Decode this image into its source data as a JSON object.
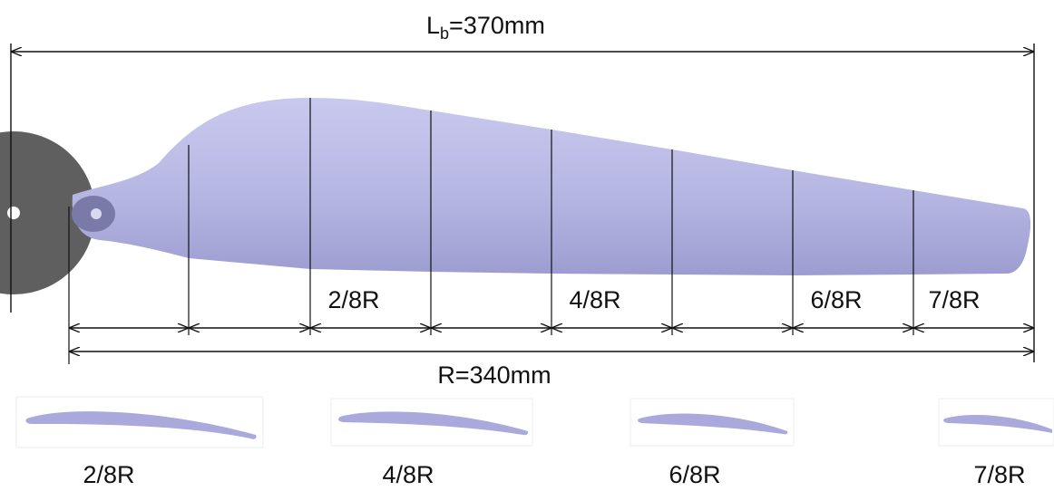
{
  "blade_length_label": {
    "symbol": "L",
    "subscript": "b",
    "value": "=370mm"
  },
  "radius_label": "R=340mm",
  "section_labels": [
    "2/8R",
    "4/8R",
    "6/8R",
    "7/8R"
  ],
  "airfoil_labels": [
    "2/8R",
    "4/8R",
    "6/8R",
    "7/8R"
  ]
}
